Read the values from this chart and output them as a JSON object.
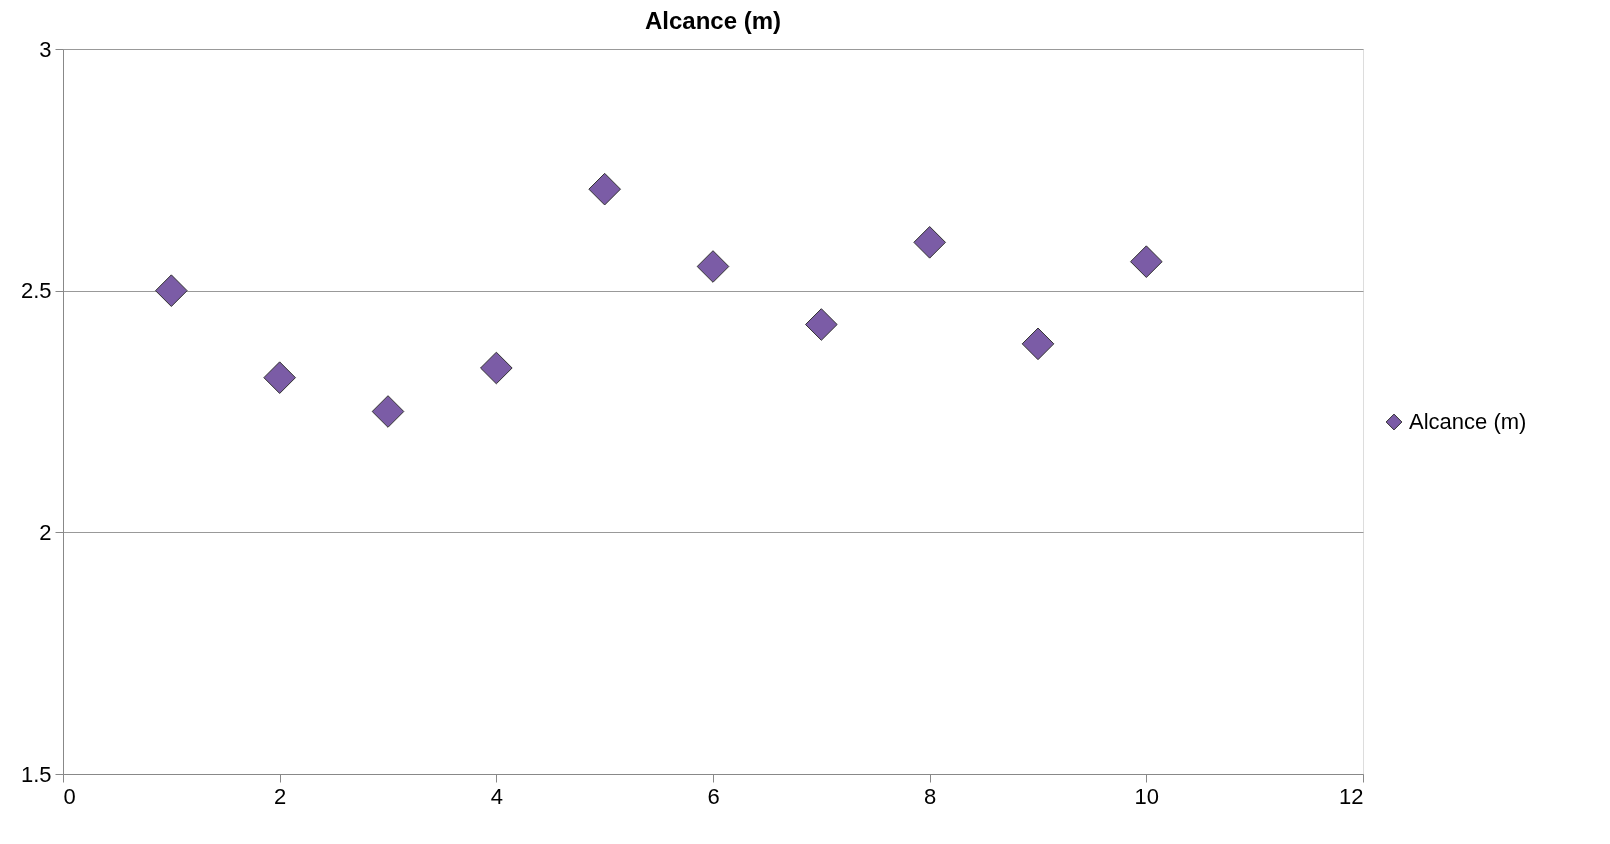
{
  "chart_data": {
    "type": "scatter",
    "title": "Alcance (m)",
    "x": [
      1,
      2,
      3,
      4,
      5,
      6,
      7,
      8,
      9,
      10
    ],
    "series": [
      {
        "name": "Alcance (m)",
        "color": "#7b5ca6",
        "values": [
          2.5,
          2.32,
          2.25,
          2.34,
          2.71,
          2.55,
          2.43,
          2.6,
          2.39,
          2.56
        ]
      }
    ],
    "xlim": [
      0,
      12
    ],
    "xticks": [
      0,
      2,
      4,
      6,
      8,
      10,
      12
    ],
    "ylim": [
      1.5,
      3
    ],
    "yticks": [
      1.5,
      2,
      2.5,
      3
    ],
    "grid": "y",
    "legend": "right",
    "marker": "diamond"
  }
}
